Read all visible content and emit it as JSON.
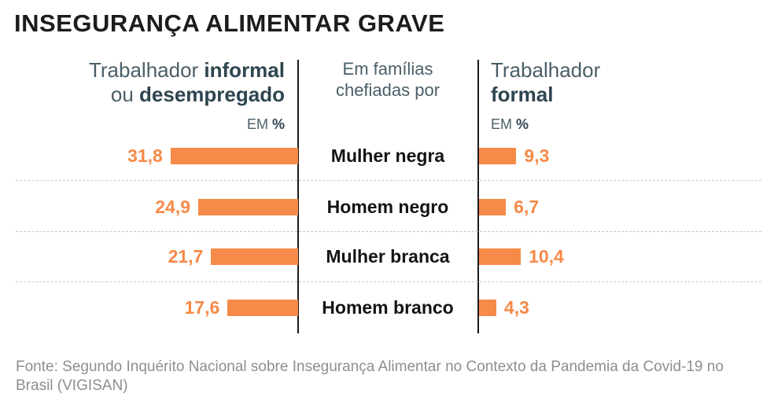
{
  "title": "INSEGURANÇA ALIMENTAR GRAVE",
  "left_header": {
    "pre": "Trabalhador ",
    "bold1": "informal",
    "mid": "ou ",
    "bold2": "desempregado"
  },
  "middle_header": {
    "line1": "Em famílias",
    "line2": "chefiadas por"
  },
  "right_header": {
    "line1": "Trabalhador",
    "bold": "formal"
  },
  "unit": {
    "pre": "EM ",
    "bold": "%"
  },
  "chart_data": {
    "type": "bar",
    "title": "INSEGURANÇA ALIMENTAR GRAVE",
    "categories": [
      "Mulher negra",
      "Homem negro",
      "Mulher branca",
      "Homem branco"
    ],
    "category_header": "Em famílias chefiadas por",
    "unit": "EM %",
    "series": [
      {
        "name": "Trabalhador informal ou desempregado",
        "values": [
          31.8,
          24.9,
          21.7,
          17.6
        ],
        "labels": [
          "31,8",
          "24,9",
          "21,7",
          "17,6"
        ]
      },
      {
        "name": "Trabalhador formal",
        "values": [
          9.3,
          6.7,
          10.4,
          4.3
        ],
        "labels": [
          "9,3",
          "6,7",
          "10,4",
          "4,3"
        ]
      }
    ],
    "bar_color": "#f68a48",
    "layout": "butterfly (left series extends leftward, right series extends rightward)",
    "grid": false
  },
  "source": "Fonte: Segundo Inquérito Nacional sobre Insegurança Alimentar no Contexto da Pandemia da Covid-19 no Brasil (VIGISAN)"
}
